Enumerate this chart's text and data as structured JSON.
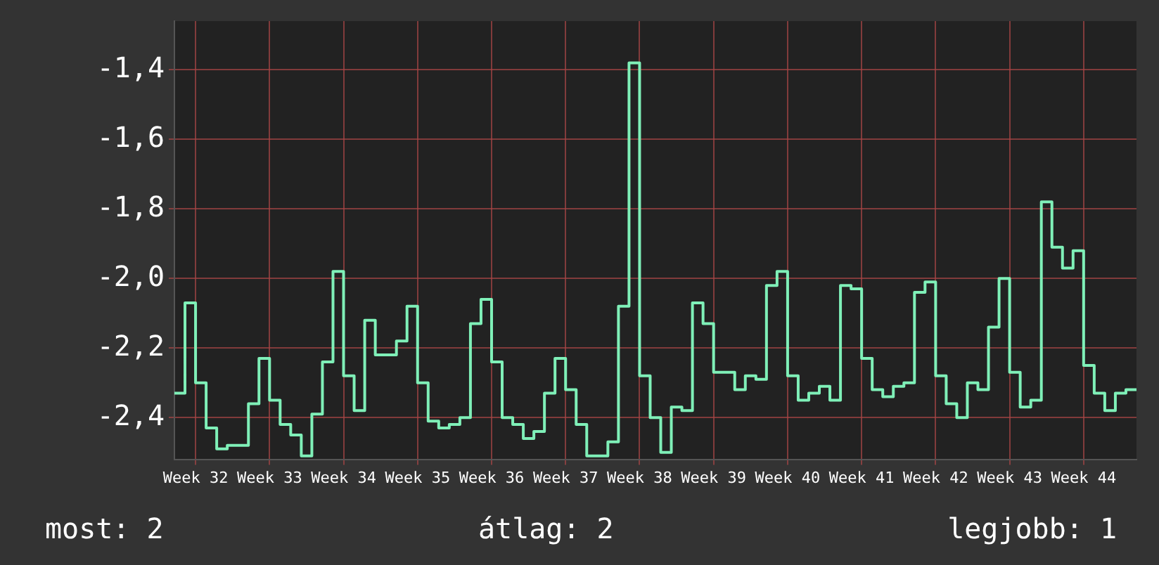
{
  "chart_data": {
    "type": "step",
    "color": "#7ff0b8",
    "categories": [
      null,
      null,
      "Week 32",
      null,
      null,
      null,
      null,
      null,
      null,
      "Week 33",
      null,
      null,
      null,
      null,
      null,
      null,
      "Week 34",
      null,
      null,
      null,
      null,
      null,
      null,
      "Week 35",
      null,
      null,
      null,
      null,
      null,
      null,
      "Week 36",
      null,
      null,
      null,
      null,
      null,
      null,
      "Week 37",
      null,
      null,
      null,
      null,
      null,
      null,
      "Week 38",
      null,
      null,
      null,
      null,
      null,
      null,
      "Week 39",
      null,
      null,
      null,
      null,
      null,
      null,
      "Week 40",
      null,
      null,
      null,
      null,
      null,
      null,
      "Week 41",
      null,
      null,
      null,
      null,
      null,
      null,
      "Week 42",
      null,
      null,
      null,
      null,
      null,
      null,
      "Week 43",
      null,
      null,
      null,
      null,
      null,
      null,
      "Week 44",
      null,
      null,
      null,
      null,
      null
    ],
    "values": [
      -2.33,
      -2.07,
      -2.3,
      -2.43,
      -2.49,
      -2.48,
      -2.48,
      -2.36,
      -2.23,
      -2.35,
      -2.42,
      -2.45,
      -2.51,
      -2.39,
      -2.24,
      -1.98,
      -2.28,
      -2.38,
      -2.12,
      -2.22,
      -2.22,
      -2.18,
      -2.08,
      -2.3,
      -2.41,
      -2.43,
      -2.42,
      -2.4,
      -2.13,
      -2.06,
      -2.24,
      -2.4,
      -2.42,
      -2.46,
      -2.44,
      -2.33,
      -2.23,
      -2.32,
      -2.42,
      -2.51,
      -2.51,
      -2.47,
      -2.08,
      -1.38,
      -2.28,
      -2.4,
      -2.5,
      -2.37,
      -2.38,
      -2.07,
      -2.13,
      -2.27,
      -2.27,
      -2.32,
      -2.28,
      -2.29,
      -2.02,
      -1.98,
      -2.28,
      -2.35,
      -2.33,
      -2.31,
      -2.35,
      -2.02,
      -2.03,
      -2.23,
      -2.32,
      -2.34,
      -2.31,
      -2.3,
      -2.04,
      -2.01,
      -2.28,
      -2.36,
      -2.4,
      -2.3,
      -2.32,
      -2.14,
      -2.0,
      -2.27,
      -2.37,
      -2.35,
      -1.78,
      -1.91,
      -1.97,
      -1.92,
      -2.25,
      -2.33,
      -2.38,
      -2.33,
      -2.32,
      -2.32
    ],
    "ylim": [
      -2.52,
      -1.26
    ],
    "yticks": [
      {
        "value": -2.4,
        "label": "-2,4"
      },
      {
        "value": -2.2,
        "label": "-2,2"
      },
      {
        "value": -2.0,
        "label": "-2,0"
      },
      {
        "value": -1.8,
        "label": "-1,8"
      },
      {
        "value": -1.6,
        "label": "-1,6"
      },
      {
        "value": -1.4,
        "label": "-1,4"
      }
    ],
    "grid": true,
    "legend": false,
    "marker": "none",
    "line_style": "solid",
    "annotations": [
      "most: 2",
      "átlag: 2",
      "legjobb: 1"
    ]
  }
}
